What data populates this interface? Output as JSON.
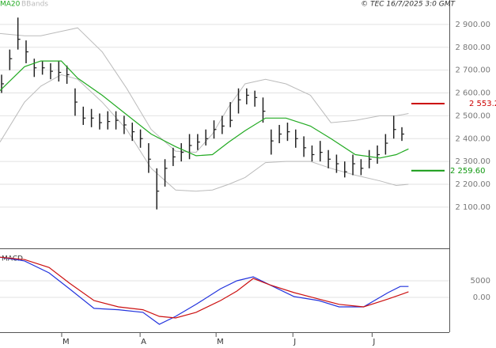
{
  "chart_data": [
    {
      "type": "ohlc",
      "source": "© TEC 16/7/2025 3:0 GMT",
      "xlim": [
        0,
        110
      ],
      "xticks": [
        {
          "value": 15.1,
          "label": "M"
        },
        {
          "value": 34.3,
          "label": "A"
        },
        {
          "value": 52.9,
          "label": "M"
        },
        {
          "value": 71.7,
          "label": "J"
        },
        {
          "value": 91.1,
          "label": "J"
        }
      ],
      "ylim": [
        1923,
        3007
      ],
      "yticks": [
        {
          "value": 2900,
          "label": "2 900.00"
        },
        {
          "value": 2800,
          "label": "2 800.00"
        },
        {
          "value": 2700,
          "label": "2 700.00"
        },
        {
          "value": 2600,
          "label": "2 600.00"
        },
        {
          "value": 2500,
          "label": "2 500.00"
        },
        {
          "value": 2400,
          "label": "2 400.00"
        },
        {
          "value": 2300,
          "label": "2 300.00"
        },
        {
          "value": 2200,
          "label": "2 200.00"
        },
        {
          "value": 2100,
          "label": "2 100.00"
        }
      ],
      "grid": true,
      "bar_color": "#222222",
      "x": [
        0,
        2,
        4,
        6,
        8,
        10,
        12,
        14,
        16,
        18,
        20,
        22,
        24,
        26,
        28,
        30,
        32,
        34,
        36,
        38,
        40,
        42,
        44,
        46,
        48,
        50,
        52,
        54,
        56,
        58,
        60,
        62,
        64,
        66,
        68,
        70,
        72,
        74,
        76,
        78,
        80,
        82,
        84,
        86,
        88,
        90,
        92,
        94,
        96,
        98
      ],
      "high": [
        2680,
        2790,
        2930,
        2830,
        2750,
        2740,
        2730,
        2740,
        2720,
        2620,
        2540,
        2530,
        2510,
        2520,
        2520,
        2500,
        2470,
        2440,
        2380,
        2270,
        2310,
        2360,
        2380,
        2420,
        2420,
        2440,
        2480,
        2500,
        2560,
        2620,
        2620,
        2610,
        2580,
        2440,
        2460,
        2470,
        2440,
        2410,
        2370,
        2390,
        2350,
        2330,
        2300,
        2330,
        2310,
        2350,
        2370,
        2420,
        2500,
        2450
      ],
      "low": [
        2600,
        2700,
        2790,
        2730,
        2670,
        2680,
        2660,
        2650,
        2640,
        2500,
        2460,
        2450,
        2440,
        2440,
        2440,
        2420,
        2390,
        2360,
        2250,
        2090,
        2190,
        2280,
        2300,
        2310,
        2350,
        2370,
        2400,
        2420,
        2450,
        2510,
        2550,
        2540,
        2470,
        2330,
        2380,
        2390,
        2360,
        2320,
        2300,
        2300,
        2270,
        2250,
        2230,
        2240,
        2240,
        2270,
        2290,
        2330,
        2400,
        2390
      ],
      "close": [
        2640,
        2750,
        2835,
        2780,
        2710,
        2710,
        2695,
        2690,
        2680,
        2560,
        2490,
        2490,
        2470,
        2475,
        2480,
        2460,
        2430,
        2400,
        2310,
        2170,
        2270,
        2320,
        2340,
        2370,
        2385,
        2400,
        2440,
        2455,
        2480,
        2570,
        2590,
        2580,
        2520,
        2390,
        2420,
        2430,
        2400,
        2360,
        2330,
        2340,
        2310,
        2290,
        2255,
        2290,
        2270,
        2310,
        2330,
        2380,
        2440,
        2420
      ],
      "ma": {
        "name": "MA20",
        "color": "#22aa22",
        "x": [
          0,
          6,
          10,
          15,
          19,
          25,
          31,
          37,
          43,
          48,
          52,
          56,
          60,
          65,
          70,
          76,
          81,
          87,
          93,
          97,
          100
        ],
        "values": [
          2610,
          2715,
          2740,
          2740,
          2665,
          2590,
          2505,
          2420,
          2365,
          2325,
          2330,
          2385,
          2435,
          2490,
          2490,
          2455,
          2400,
          2330,
          2315,
          2330,
          2355
        ]
      },
      "bands": {
        "name": "BBands",
        "color": "#bbbbbb",
        "x": [
          0,
          6,
          10,
          15,
          19,
          25,
          31,
          37,
          43,
          48,
          52,
          56,
          60,
          65,
          70,
          76,
          81,
          87,
          93,
          97,
          100
        ],
        "upper": [
          2860,
          2850,
          2850,
          2870,
          2885,
          2780,
          2620,
          2440,
          2345,
          2340,
          2420,
          2540,
          2640,
          2660,
          2640,
          2590,
          2470,
          2480,
          2500,
          2500,
          2510
        ],
        "lower": [
          2385,
          2560,
          2630,
          2680,
          2660,
          2560,
          2440,
          2270,
          2175,
          2170,
          2175,
          2200,
          2230,
          2295,
          2300,
          2300,
          2270,
          2240,
          2215,
          2195,
          2200
        ]
      },
      "levels": [
        {
          "value": 2553.2,
          "label": "2 553.2",
          "color": "#cc0000"
        },
        {
          "value": 2259.6,
          "label": "2 259.60",
          "color": "#119911"
        }
      ]
    },
    {
      "type": "line",
      "title": "MACD",
      "ylim": [
        -10000,
        14300
      ],
      "yticks": [
        5000,
        {
          "value": 0,
          "label": "0.00"
        }
      ],
      "grid": true,
      "series": [
        {
          "color": "#2233dd",
          "x": [
            0,
            6,
            12,
            17,
            23,
            29,
            35,
            39,
            43,
            48,
            54,
            58,
            62,
            66,
            72,
            78,
            83,
            89,
            95,
            98,
            100
          ],
          "values": [
            12100,
            11000,
            7400,
            2600,
            -3300,
            -3700,
            -4500,
            -8100,
            -5700,
            -2100,
            2600,
            5000,
            6200,
            3800,
            240,
            -950,
            -2860,
            -2860,
            1430,
            3300,
            3300
          ]
        },
        {
          "color": "#cc1111",
          "x": [
            0,
            6,
            12,
            17,
            23,
            29,
            35,
            39,
            43,
            48,
            54,
            58,
            62,
            66,
            72,
            78,
            83,
            89,
            95,
            98,
            100
          ],
          "values": [
            12100,
            11400,
            9000,
            4300,
            -950,
            -2860,
            -3700,
            -5700,
            -6200,
            -4500,
            -950,
            1900,
            5700,
            3800,
            1430,
            -500,
            -2100,
            -2860,
            -500,
            800,
            1700
          ]
        }
      ]
    }
  ]
}
